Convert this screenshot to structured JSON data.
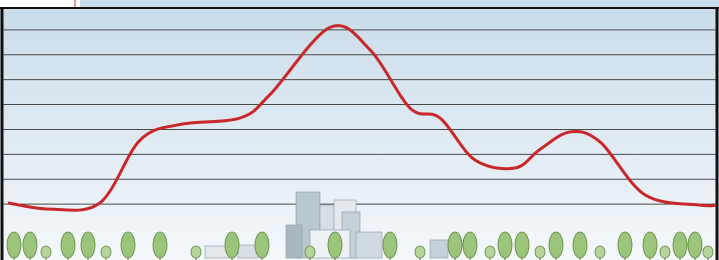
{
  "chart_data": {
    "type": "line",
    "x": [
      8,
      50,
      100,
      140,
      180,
      240,
      270,
      330,
      370,
      410,
      440,
      475,
      515,
      540,
      570,
      600,
      645,
      700,
      716
    ],
    "series": [
      {
        "color": "#c8282a",
        "values": [
          1.05,
          0.8,
          1.05,
          3.57,
          4.2,
          4.46,
          5.4,
          8.1,
          7.2,
          4.86,
          4.46,
          2.77,
          2.45,
          3.2,
          3.9,
          3.5,
          1.37,
          0.96,
          0.96
        ]
      }
    ],
    "xlim": [
      0,
      719
    ],
    "ylim": [
      0,
      9
    ],
    "yticks": [
      1,
      2,
      3,
      4,
      5,
      6,
      7,
      8
    ],
    "grid": true
  }
}
